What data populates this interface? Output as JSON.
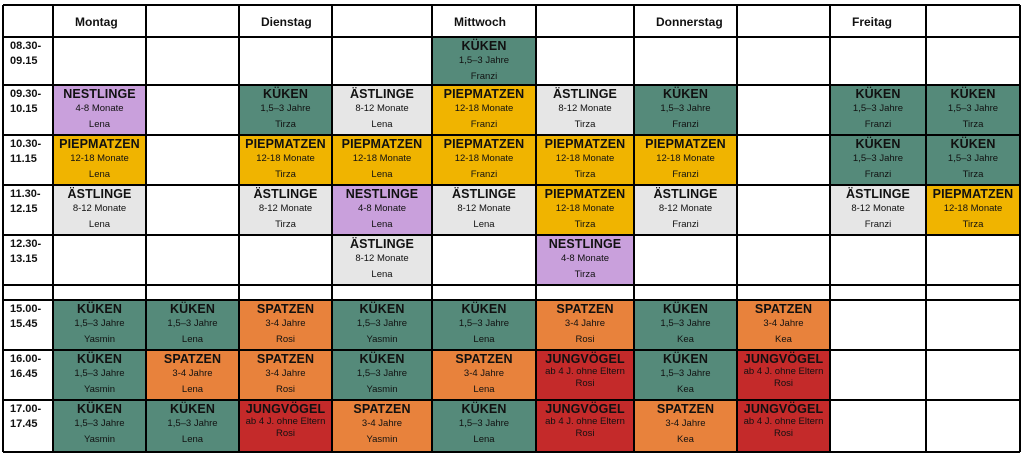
{
  "days": [
    "Montag",
    "",
    "Dienstag",
    "",
    "Mittwoch",
    "",
    "Donnerstag",
    "",
    "Freitag",
    ""
  ],
  "slots": [
    {
      "time": "08.30-\n09.15",
      "cells": [
        null,
        null,
        null,
        null,
        {
          "k": "kueken",
          "name": "Franzi"
        },
        null,
        null,
        null,
        null,
        null
      ]
    },
    {
      "time": "09.30-\n10.15",
      "cells": [
        {
          "k": "nestlinge",
          "name": "Lena"
        },
        null,
        {
          "k": "kueken",
          "name": "Tirza"
        },
        {
          "k": "aestlinge",
          "name": "Lena"
        },
        {
          "k": "piepmatzen",
          "name": "Franzi"
        },
        {
          "k": "aestlinge",
          "name": "Tirza"
        },
        {
          "k": "kueken",
          "name": "Franzi"
        },
        null,
        {
          "k": "kueken",
          "name": "Franzi"
        },
        {
          "k": "kueken",
          "name": "Tirza"
        }
      ]
    },
    {
      "time": "10.30-\n11.15",
      "cells": [
        {
          "k": "piepmatzen",
          "name": "Lena"
        },
        null,
        {
          "k": "piepmatzen",
          "name": "Tirza"
        },
        {
          "k": "piepmatzen",
          "name": "Lena"
        },
        {
          "k": "piepmatzen",
          "name": "Franzi"
        },
        {
          "k": "piepmatzen",
          "name": "Tirza"
        },
        {
          "k": "piepmatzen",
          "name": "Franzi"
        },
        null,
        {
          "k": "kueken",
          "name": "Franzi"
        },
        {
          "k": "kueken",
          "name": "Tirza"
        }
      ]
    },
    {
      "time": "11.30-\n12.15",
      "cells": [
        {
          "k": "aestlinge",
          "name": "Lena"
        },
        null,
        {
          "k": "aestlinge",
          "name": "Tirza"
        },
        {
          "k": "nestlinge",
          "name": "Lena"
        },
        {
          "k": "aestlinge",
          "name": "Lena"
        },
        {
          "k": "piepmatzen",
          "name": "Tirza"
        },
        {
          "k": "aestlinge",
          "name": "Franzi"
        },
        null,
        {
          "k": "aestlinge",
          "name": "Franzi"
        },
        {
          "k": "piepmatzen",
          "name": "Tirza"
        }
      ]
    },
    {
      "time": "12.30-\n13.15",
      "cells": [
        null,
        null,
        null,
        {
          "k": "aestlinge",
          "name": "Lena"
        },
        null,
        {
          "k": "nestlinge",
          "name": "Tirza"
        },
        null,
        null,
        null,
        null
      ]
    },
    {
      "time": "",
      "cells": [
        null,
        null,
        null,
        null,
        null,
        null,
        null,
        null,
        null,
        null
      ]
    },
    {
      "time": "15.00-\n15.45",
      "cells": [
        {
          "k": "kueken",
          "name": "Yasmin"
        },
        {
          "k": "kueken",
          "name": "Lena"
        },
        {
          "k": "spatzen",
          "name": "Rosi"
        },
        {
          "k": "kueken",
          "name": "Yasmin"
        },
        {
          "k": "kueken",
          "name": "Lena"
        },
        {
          "k": "spatzen",
          "name": "Rosi"
        },
        {
          "k": "kueken",
          "name": "Kea"
        },
        {
          "k": "spatzen",
          "name": "Kea"
        },
        null,
        null
      ]
    },
    {
      "time": "16.00-\n16.45",
      "cells": [
        {
          "k": "kueken",
          "name": "Yasmin"
        },
        {
          "k": "spatzen",
          "name": "Lena"
        },
        {
          "k": "spatzen",
          "name": "Rosi"
        },
        {
          "k": "kueken",
          "name": "Yasmin"
        },
        {
          "k": "spatzen",
          "name": "Lena"
        },
        {
          "k": "jungvoegel",
          "name": "Rosi"
        },
        {
          "k": "kueken",
          "name": "Kea"
        },
        {
          "k": "jungvoegel",
          "name": "Rosi"
        },
        null,
        null
      ]
    },
    {
      "time": "17.00-\n17.45",
      "cells": [
        {
          "k": "kueken",
          "name": "Yasmin"
        },
        {
          "k": "kueken",
          "name": "Lena"
        },
        {
          "k": "jungvoegel",
          "name": "Rosi"
        },
        {
          "k": "spatzen",
          "name": "Yasmin"
        },
        {
          "k": "kueken",
          "name": "Lena"
        },
        {
          "k": "jungvoegel",
          "name": "Rosi"
        },
        {
          "k": "spatzen",
          "name": "Kea"
        },
        {
          "k": "jungvoegel",
          "name": "Rosi"
        },
        null,
        null
      ]
    }
  ],
  "groups": {
    "kueken": {
      "title": "KÜKEN",
      "sub": "1,5–3 Jahre",
      "color": "#558a7a"
    },
    "nestlinge": {
      "title": "NESTLINGE",
      "sub": "4-8 Monate",
      "color": "#c9a0dc"
    },
    "aestlinge": {
      "title": "ÄSTLINGE",
      "sub": "8-12 Monate",
      "color": "#e6e6e6"
    },
    "piepmatzen": {
      "title": "PIEPMATZEN",
      "sub": "12-18 Monate",
      "color": "#f0b400"
    },
    "spatzen": {
      "title": "SPATZEN",
      "sub": "3-4 Jahre",
      "color": "#e8823c"
    },
    "jungvoegel": {
      "title": "JUNGVÖGEL",
      "sub": "ab 4 J. ohne Eltern",
      "color": "#c42a2a"
    }
  }
}
